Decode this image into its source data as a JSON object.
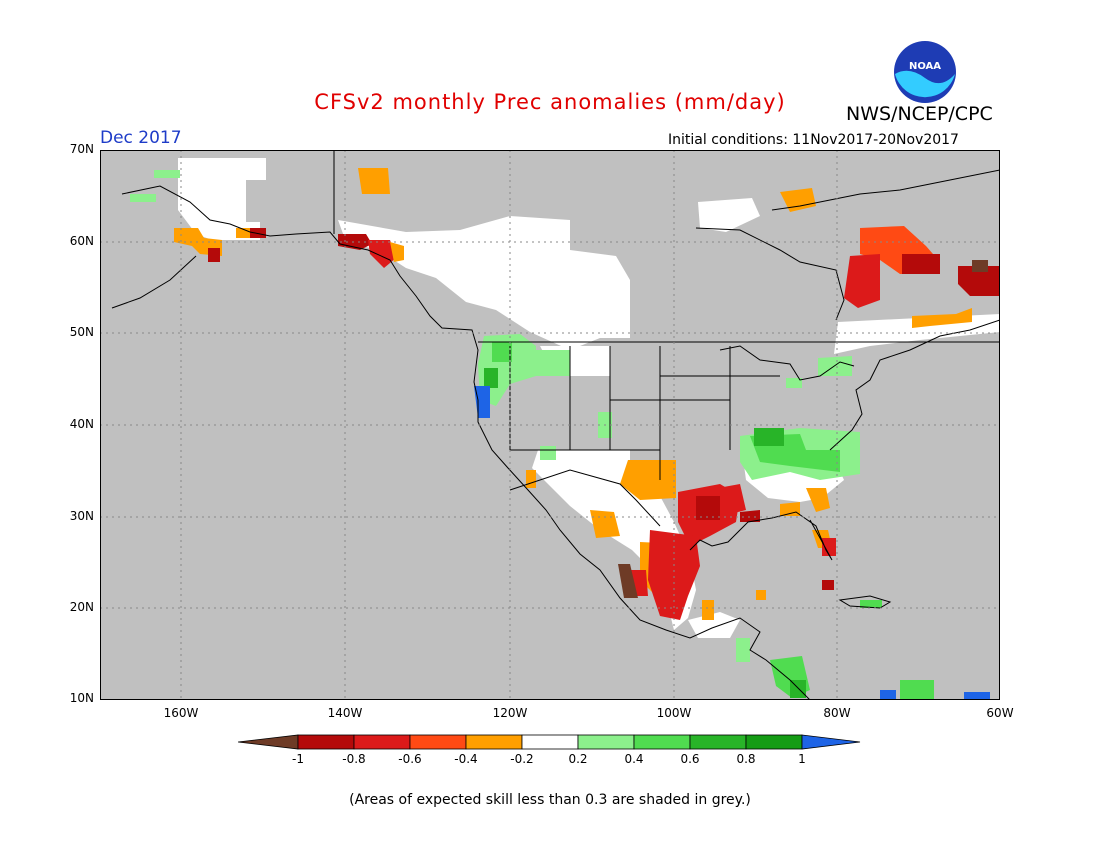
{
  "title": "CFSv2 monthly Prec anomalies (mm/day)",
  "agency": "NWS/NCEP/CPC",
  "logo_text": "NOAA",
  "month_label": "Dec 2017",
  "initial_conditions": "Initial conditions: 11Nov2017-20Nov2017",
  "footnote": "(Areas of expected skill less than 0.3 are shaded in grey.)",
  "lat_labels": [
    "70N",
    "60N",
    "50N",
    "40N",
    "30N",
    "20N",
    "10N"
  ],
  "lon_labels": [
    "160W",
    "140W",
    "120W",
    "100W",
    "80W",
    "60W"
  ],
  "colorbar": {
    "labels": [
      "-1",
      "-0.8",
      "-0.6",
      "-0.4",
      "-0.2",
      "0.2",
      "0.4",
      "0.6",
      "0.8",
      "1"
    ],
    "colors": [
      "#6e3b26",
      "#b40a0a",
      "#dc1a1a",
      "#ff4a14",
      "#ff9f00",
      "#ffffff",
      "#8cf08c",
      "#50dc50",
      "#28b428",
      "#159c15",
      "#1e64e6"
    ]
  },
  "colors": {
    "grey_low_skill": "#c0c0c0",
    "coast": "#000000",
    "grid": "#888888"
  }
}
